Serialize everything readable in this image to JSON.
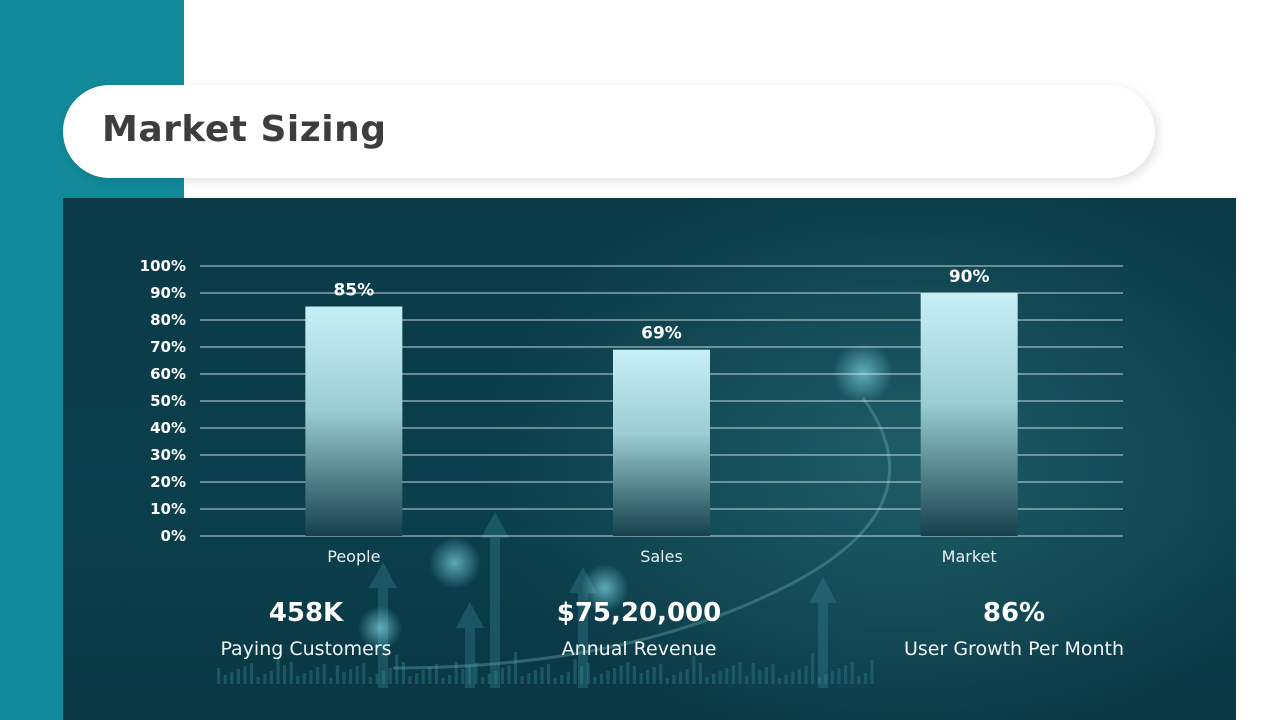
{
  "title": "Market Sizing",
  "colors": {
    "accent": "#128a99",
    "panel": "#0b3f4c",
    "bar_top": "#c6f0f5",
    "bar_bottom": "#15414c",
    "text_dark": "#3d3d3d"
  },
  "chart_data": {
    "type": "bar",
    "categories": [
      "People",
      "Sales",
      "Market"
    ],
    "values": [
      85,
      69,
      90
    ],
    "value_labels": [
      "85%",
      "69%",
      "90%"
    ],
    "ylim": [
      0,
      100
    ],
    "yticks": [
      "0%",
      "10%",
      "20%",
      "30%",
      "40%",
      "50%",
      "60%",
      "70%",
      "80%",
      "90%",
      "100%"
    ],
    "grid": true,
    "title": "",
    "xlabel": "",
    "ylabel": ""
  },
  "stats": [
    {
      "value": "458K",
      "label": "Paying Customers"
    },
    {
      "value": "$75,20,000",
      "label": "Annual Revenue"
    },
    {
      "value": "86%",
      "label": "User Growth Per Month"
    }
  ]
}
